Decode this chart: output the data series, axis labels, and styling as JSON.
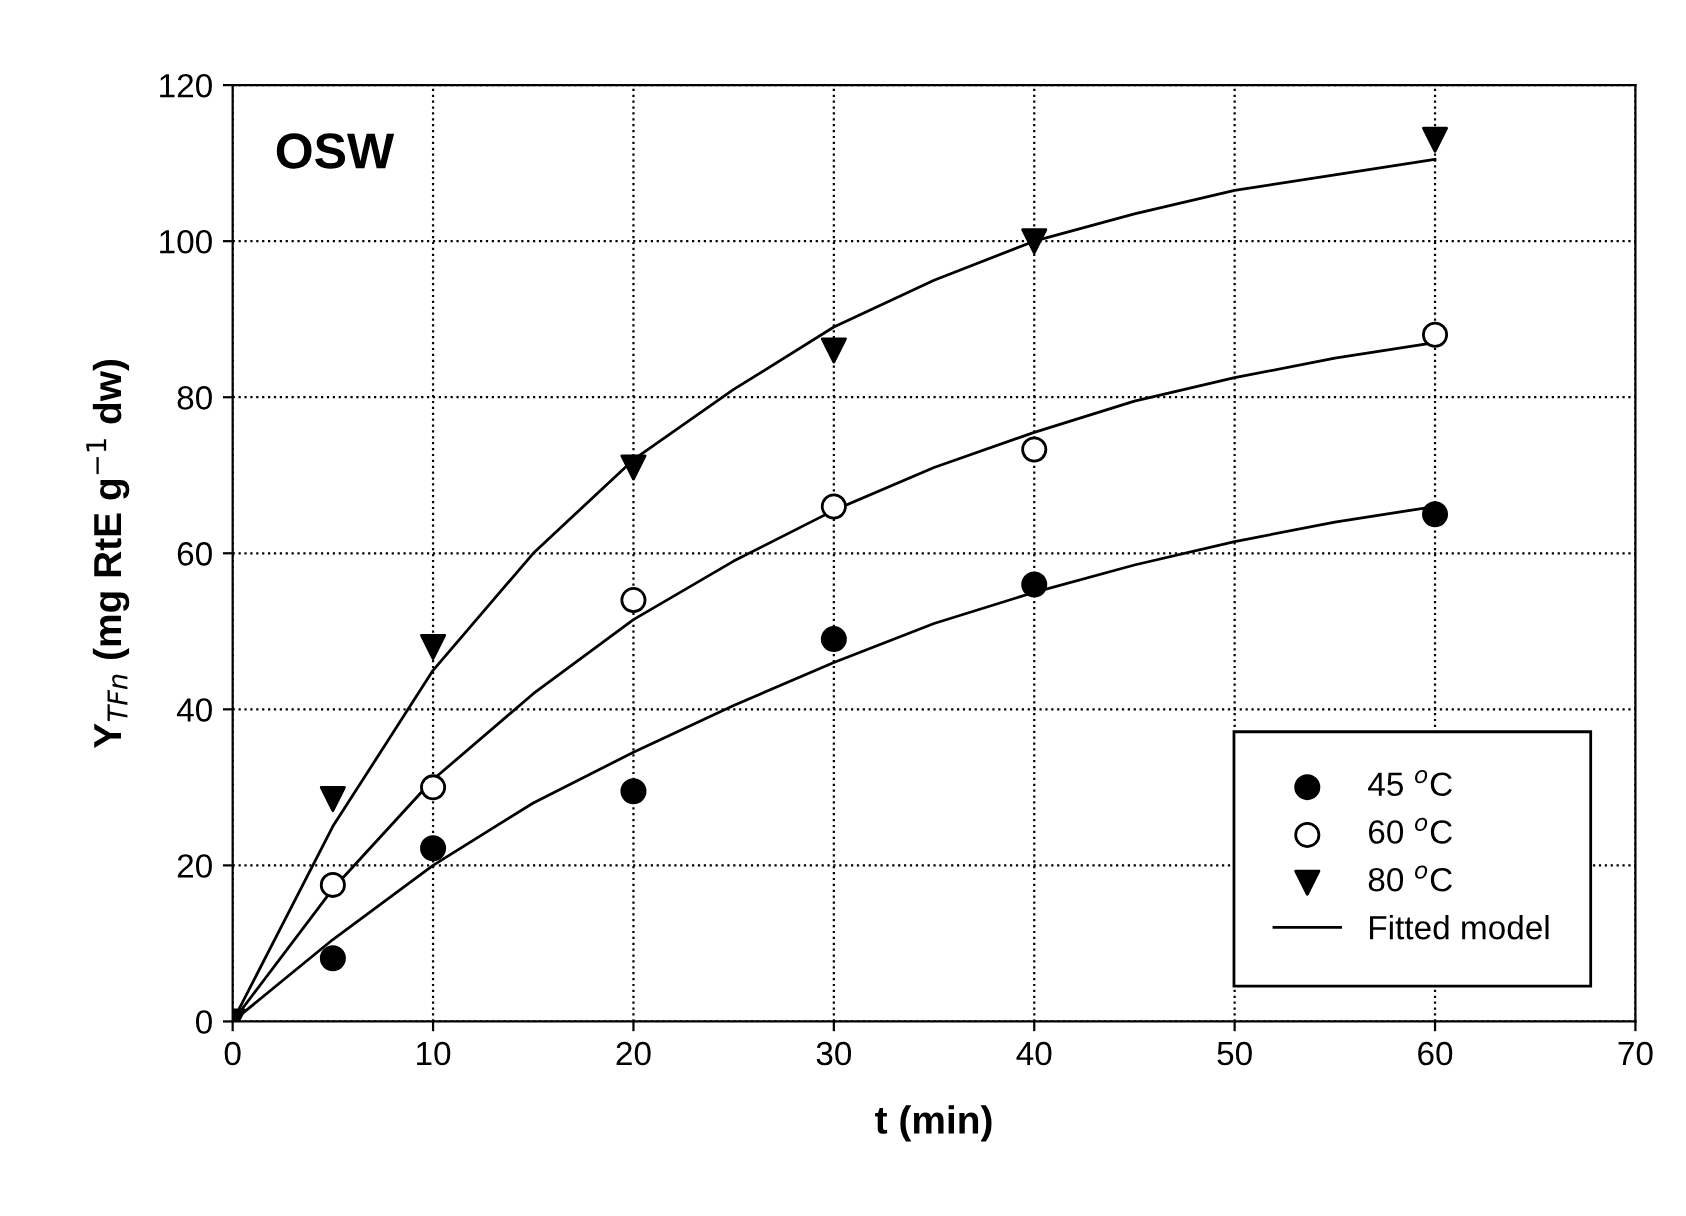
{
  "chart_data": {
    "type": "scatter",
    "xlabel": "t (min)",
    "ylabel": "Y$_{TFn}$ (mg RtE g$^{−1}$ dw)",
    "annotations": [
      "OSW"
    ],
    "xlim": [
      0,
      70
    ],
    "ylim": [
      0,
      120
    ],
    "xticks": [
      0,
      10,
      20,
      30,
      40,
      50,
      60,
      70
    ],
    "yticks": [
      0,
      20,
      40,
      60,
      80,
      100,
      120
    ],
    "grid": true,
    "legend": "bottom right",
    "series": [
      {
        "name": "45 $^{o}$C",
        "marker": "circle",
        "color": "#000000",
        "x": [
          5,
          10,
          20,
          30,
          40,
          60
        ],
        "values": [
          8.1,
          22.2,
          29.5,
          49,
          56,
          65
        ]
      },
      {
        "name": "60 $^{o}$C",
        "marker": "circle",
        "color": "#ffffff",
        "x": [
          5,
          10,
          20,
          30,
          40,
          60
        ],
        "values": [
          17.5,
          30,
          54,
          66,
          73.3,
          88
        ]
      },
      {
        "name": "80 $^{o}$C",
        "marker": "triangle",
        "color": "#000000",
        "x": [
          0,
          5,
          10,
          20,
          30,
          40,
          60
        ],
        "values": [
          0,
          28.5,
          48,
          71,
          86,
          100,
          113
        ]
      },
      {
        "name": "Fitted model",
        "type": "line",
        "marker": "none",
        "color": "#000000",
        "x": [
          0,
          5,
          10,
          15,
          20,
          25,
          30,
          35,
          40,
          45,
          50,
          55,
          60
        ],
        "values": [
          0,
          10.5,
          20,
          28,
          34.5,
          40.5,
          46,
          51,
          55,
          58.5,
          61.5,
          64,
          66
        ]
      },
      {
        "type": "line",
        "marker": "none",
        "color": "#000000",
        "x": [
          0,
          5,
          10,
          15,
          20,
          25,
          30,
          35,
          40,
          45,
          50,
          55,
          60
        ],
        "values": [
          0,
          17,
          31,
          42,
          51.5,
          59,
          65.5,
          71,
          75.5,
          79.5,
          82.5,
          85,
          87
        ]
      },
      {
        "type": "line",
        "marker": "none",
        "color": "#000000",
        "x": [
          0,
          5,
          10,
          15,
          20,
          25,
          30,
          35,
          40,
          45,
          50,
          55,
          60
        ],
        "values": [
          0,
          25,
          45,
          60,
          72,
          81,
          89,
          95,
          100,
          103.5,
          106.5,
          108.5,
          110.5
        ]
      }
    ]
  }
}
